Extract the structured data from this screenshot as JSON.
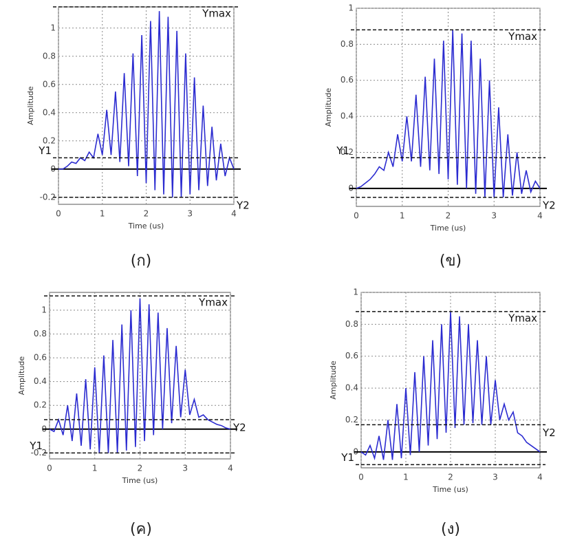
{
  "chart_data": [
    {
      "type": "line",
      "caption": "(ก)",
      "xlabel": "Time (us)",
      "ylabel": "Amplitude",
      "xlim": [
        0,
        4
      ],
      "xticks": [
        0,
        1,
        2,
        3,
        4
      ],
      "ylim": [
        -0.25,
        1.15
      ],
      "yticks": [
        -0.2,
        0,
        0.2,
        0.4,
        0.6,
        0.8,
        1
      ],
      "grid": true,
      "ref_lines": [
        {
          "label": "Ymax",
          "value": 1.15
        },
        {
          "label": "Y1",
          "value": 0.08
        },
        {
          "label": "Y2",
          "value": -0.2
        }
      ],
      "series": [
        {
          "color": "#2b2bd0",
          "x": [
            0,
            0.1,
            0.2,
            0.3,
            0.4,
            0.5,
            0.6,
            0.7,
            0.8,
            0.9,
            1,
            1.1,
            1.2,
            1.3,
            1.4,
            1.5,
            1.6,
            1.7,
            1.8,
            1.9,
            2,
            2.1,
            2.2,
            2.3,
            2.4,
            2.5,
            2.6,
            2.7,
            2.8,
            2.9,
            3,
            3.1,
            3.2,
            3.3,
            3.4,
            3.5,
            3.6,
            3.7,
            3.8,
            3.9,
            4
          ],
          "values": [
            0,
            0,
            0.02,
            0.05,
            0.04,
            0.08,
            0.06,
            0.12,
            0.08,
            0.25,
            0.1,
            0.42,
            0.1,
            0.55,
            0.05,
            0.68,
            0.02,
            0.82,
            -0.05,
            0.95,
            -0.1,
            1.05,
            -0.15,
            1.12,
            -0.18,
            1.08,
            -0.2,
            0.98,
            -0.2,
            0.82,
            -0.18,
            0.65,
            -0.15,
            0.45,
            -0.12,
            0.3,
            -0.08,
            0.18,
            -0.05,
            0.08,
            0
          ]
        }
      ]
    },
    {
      "type": "line",
      "caption": "(ข)",
      "xlabel": "Time (us)",
      "ylabel": "Amplitude",
      "xlim": [
        0,
        4
      ],
      "xticks": [
        0,
        1,
        2,
        3,
        4
      ],
      "ylim": [
        -0.1,
        1
      ],
      "yticks": [
        0,
        0.2,
        0.4,
        0.6,
        0.8,
        1
      ],
      "grid": true,
      "ref_lines": [
        {
          "label": "Ymax",
          "value": 0.88
        },
        {
          "label": "Y1",
          "value": 0.17
        },
        {
          "label": "Y2",
          "value": -0.05
        }
      ],
      "series": [
        {
          "color": "#2b2bd0",
          "x": [
            0,
            0.1,
            0.2,
            0.3,
            0.4,
            0.5,
            0.6,
            0.7,
            0.8,
            0.9,
            1,
            1.1,
            1.2,
            1.3,
            1.4,
            1.5,
            1.6,
            1.7,
            1.8,
            1.9,
            2,
            2.1,
            2.2,
            2.3,
            2.4,
            2.5,
            2.6,
            2.7,
            2.8,
            2.9,
            3,
            3.1,
            3.2,
            3.3,
            3.4,
            3.5,
            3.6,
            3.7,
            3.8,
            3.9,
            4
          ],
          "values": [
            0,
            0.01,
            0.03,
            0.05,
            0.08,
            0.12,
            0.1,
            0.2,
            0.12,
            0.3,
            0.15,
            0.4,
            0.15,
            0.52,
            0.12,
            0.62,
            0.1,
            0.72,
            0.08,
            0.82,
            0.05,
            0.88,
            0.02,
            0.86,
            0,
            0.82,
            -0.03,
            0.72,
            -0.05,
            0.6,
            -0.05,
            0.45,
            -0.05,
            0.3,
            -0.04,
            0.2,
            -0.03,
            0.1,
            -0.02,
            0.04,
            0
          ]
        }
      ]
    },
    {
      "type": "line",
      "caption": "(ค)",
      "xlabel": "Time (us)",
      "ylabel": "Amplitude",
      "xlim": [
        0,
        4
      ],
      "xticks": [
        0,
        1,
        2,
        3,
        4
      ],
      "ylim": [
        -0.25,
        1.15
      ],
      "yticks": [
        -0.2,
        0,
        0.2,
        0.4,
        0.6,
        0.8,
        1
      ],
      "grid": true,
      "ref_lines": [
        {
          "label": "Ymax",
          "value": 1.12
        },
        {
          "label": "Y1",
          "value": -0.2
        },
        {
          "label": "Y2",
          "value": 0.08
        }
      ],
      "series": [
        {
          "color": "#2b2bd0",
          "x": [
            0,
            0.1,
            0.2,
            0.3,
            0.4,
            0.5,
            0.6,
            0.7,
            0.8,
            0.9,
            1,
            1.1,
            1.2,
            1.3,
            1.4,
            1.5,
            1.6,
            1.7,
            1.8,
            1.9,
            2,
            2.1,
            2.2,
            2.3,
            2.4,
            2.5,
            2.6,
            2.7,
            2.8,
            2.9,
            3,
            3.1,
            3.2,
            3.3,
            3.4,
            3.5,
            3.6,
            3.7,
            3.8,
            3.9,
            4
          ],
          "values": [
            0,
            -0.02,
            0.08,
            -0.05,
            0.2,
            -0.1,
            0.3,
            -0.14,
            0.42,
            -0.17,
            0.52,
            -0.2,
            0.62,
            -0.2,
            0.75,
            -0.2,
            0.88,
            -0.18,
            1,
            -0.15,
            1.1,
            -0.1,
            1.05,
            -0.05,
            0.98,
            0,
            0.85,
            0.05,
            0.7,
            0.1,
            0.5,
            0.12,
            0.25,
            0.1,
            0.12,
            0.08,
            0.06,
            0.04,
            0.03,
            0.01,
            0
          ]
        }
      ]
    },
    {
      "type": "line",
      "caption": "(ง)",
      "xlabel": "Time (us)",
      "ylabel": "Amplitude",
      "xlim": [
        0,
        4
      ],
      "xticks": [
        0,
        1,
        2,
        3,
        4
      ],
      "ylim": [
        -0.1,
        1
      ],
      "yticks": [
        0,
        0.2,
        0.4,
        0.6,
        0.8,
        1
      ],
      "grid": true,
      "ref_lines": [
        {
          "label": "Ymax",
          "value": 0.88
        },
        {
          "label": "Y1",
          "value": -0.08
        },
        {
          "label": "Y2",
          "value": 0.17
        }
      ],
      "series": [
        {
          "color": "#2b2bd0",
          "x": [
            0,
            0.1,
            0.2,
            0.3,
            0.4,
            0.5,
            0.6,
            0.7,
            0.8,
            0.9,
            1,
            1.1,
            1.2,
            1.3,
            1.4,
            1.5,
            1.6,
            1.7,
            1.8,
            1.9,
            2,
            2.1,
            2.2,
            2.3,
            2.4,
            2.5,
            2.6,
            2.7,
            2.8,
            2.9,
            3,
            3.1,
            3.2,
            3.3,
            3.4,
            3.5,
            3.6,
            3.7,
            3.8,
            3.9,
            4
          ],
          "values": [
            0,
            -0.02,
            0.04,
            -0.04,
            0.1,
            -0.05,
            0.2,
            -0.05,
            0.3,
            -0.04,
            0.4,
            -0.02,
            0.5,
            0,
            0.6,
            0.04,
            0.7,
            0.08,
            0.8,
            0.12,
            0.88,
            0.15,
            0.85,
            0.17,
            0.8,
            0.18,
            0.7,
            0.17,
            0.6,
            0.17,
            0.45,
            0.2,
            0.3,
            0.2,
            0.25,
            0.12,
            0.1,
            0.06,
            0.04,
            0.02,
            0
          ]
        }
      ]
    }
  ]
}
